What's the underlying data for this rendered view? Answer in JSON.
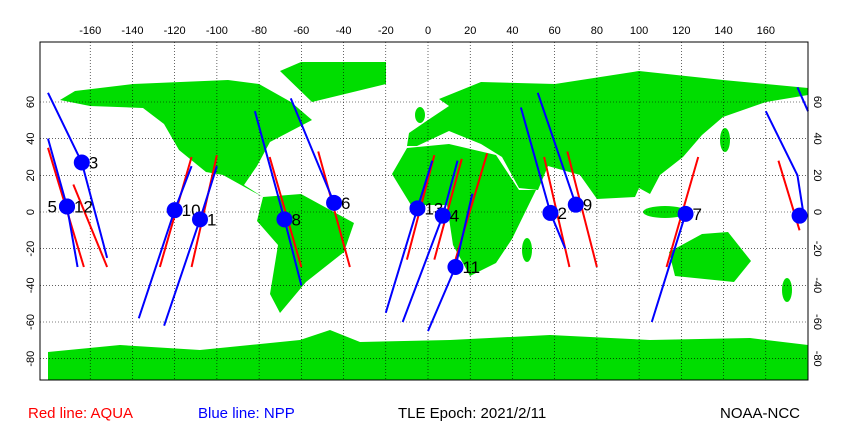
{
  "map": {
    "lonlim": [
      -180,
      180
    ],
    "latlim": [
      -90,
      90
    ],
    "xticks": [
      -160,
      -140,
      -120,
      -100,
      -80,
      -60,
      -40,
      -20,
      0,
      20,
      40,
      60,
      80,
      100,
      120,
      140,
      160
    ],
    "yticks": [
      60,
      40,
      20,
      0,
      -20,
      -40,
      -60,
      -80
    ],
    "tracks": [
      {
        "name": "Red line: AQUA",
        "color": "#ff0000",
        "lines": [
          [
            [
              -180,
              35
            ],
            [
              -163,
              -30
            ]
          ],
          [
            [
              -168,
              15
            ],
            [
              -152,
              -30
            ]
          ],
          [
            [
              -112,
              30
            ],
            [
              -127,
              -30
            ]
          ],
          [
            [
              -100,
              31
            ],
            [
              -112,
              -30
            ]
          ],
          [
            [
              -75,
              30
            ],
            [
              -60,
              -30
            ]
          ],
          [
            [
              -52,
              33
            ],
            [
              -37,
              -30
            ]
          ],
          [
            [
              3,
              31
            ],
            [
              -10,
              -26
            ]
          ],
          [
            [
              16,
              29
            ],
            [
              3,
              -26
            ]
          ],
          [
            [
              28,
              32
            ],
            [
              12,
              -30
            ]
          ],
          [
            [
              55,
              30
            ],
            [
              67,
              -30
            ]
          ],
          [
            [
              66,
              33
            ],
            [
              80,
              -30
            ]
          ],
          [
            [
              128,
              30
            ],
            [
              113,
              -30
            ]
          ],
          [
            [
              166,
              28
            ],
            [
              176,
              -10
            ]
          ]
        ]
      },
      {
        "name": "Blue line: NPP",
        "color": "#0000ff",
        "lines": [
          [
            [
              -180,
              65
            ],
            [
              -164,
              27
            ],
            [
              -152,
              -25
            ]
          ],
          [
            [
              -180,
              40
            ],
            [
              -171,
              3
            ],
            [
              -166,
              -30
            ]
          ],
          [
            [
              -112,
              25
            ],
            [
              -120,
              1
            ],
            [
              -137,
              -58
            ]
          ],
          [
            [
              -100,
              25
            ],
            [
              -108,
              -4
            ],
            [
              -125,
              -62
            ]
          ],
          [
            [
              -82,
              55
            ],
            [
              -68,
              -4
            ],
            [
              -60,
              -40
            ]
          ],
          [
            [
              -65,
              62
            ],
            [
              -44.5,
              5
            ]
          ],
          [
            [
              2,
              28
            ],
            [
              -5,
              2
            ],
            [
              -20,
              -55
            ]
          ],
          [
            [
              14,
              28
            ],
            [
              7,
              -2
            ],
            [
              -12,
              -60
            ]
          ],
          [
            [
              21,
              10
            ],
            [
              13,
              -30
            ],
            [
              0,
              -65
            ]
          ],
          [
            [
              44,
              57
            ],
            [
              58,
              -0.5
            ],
            [
              65,
              -20
            ]
          ],
          [
            [
              52,
              65
            ],
            [
              70,
              4
            ]
          ],
          [
            [
              122,
              -1
            ],
            [
              106,
              -60
            ]
          ],
          [
            [
              160,
              55
            ],
            [
              175,
              20
            ],
            [
              178,
              -2
            ]
          ],
          [
            [
              175,
              68
            ],
            [
              180,
              55
            ]
          ]
        ]
      }
    ],
    "satellites": [
      {
        "label": "3",
        "lon": -164,
        "lat": 27
      },
      {
        "label": "5",
        "lon": -171,
        "lat": 3
      },
      {
        "label": "12",
        "lon": -171,
        "lat": 3
      },
      {
        "label": "10",
        "lon": -120,
        "lat": 1
      },
      {
        "label": "1",
        "lon": -108,
        "lat": -4
      },
      {
        "label": "8",
        "lon": -68,
        "lat": -4
      },
      {
        "label": "6",
        "lon": -44.5,
        "lat": 5
      },
      {
        "label": "13",
        "lon": -5,
        "lat": 2
      },
      {
        "label": "4",
        "lon": 7,
        "lat": -2
      },
      {
        "label": "11",
        "lon": 13,
        "lat": -30
      },
      {
        "label": "2",
        "lon": 58,
        "lat": -0.5
      },
      {
        "label": "9",
        "lon": 70,
        "lat": 4
      },
      {
        "label": "7",
        "lon": 122,
        "lat": -1
      },
      {
        "label": null,
        "lon": 176,
        "lat": -2
      }
    ],
    "epoch": "TLE Epoch: 2021/2/11",
    "credit": "NOAA-NCC"
  }
}
